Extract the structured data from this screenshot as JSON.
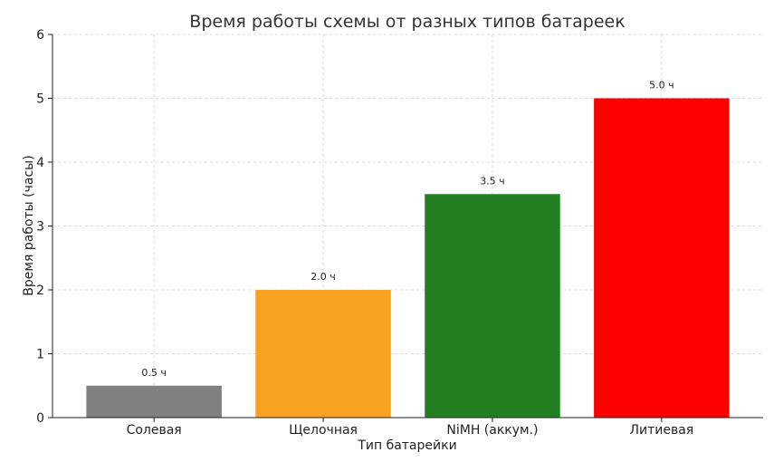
{
  "chart_data": {
    "type": "bar",
    "title": "Время работы схемы от разных типов батареек",
    "xlabel": "Тип батарейки",
    "ylabel": "Время работы (часы)",
    "categories": [
      "Солевая",
      "Щелочная",
      "NiMH (аккум.)",
      "Литиевая"
    ],
    "values": [
      0.5,
      2.0,
      3.5,
      5.0
    ],
    "data_labels": [
      "0.5 ч",
      "2.0 ч",
      "3.5 ч",
      "5.0 ч"
    ],
    "colors": [
      "#808080",
      "#f9a222",
      "#228022",
      "#ff0000"
    ],
    "ylim": [
      0,
      6
    ],
    "yticks": [
      0,
      1,
      2,
      3,
      4,
      5,
      6
    ],
    "grid": true,
    "legend": "none"
  }
}
